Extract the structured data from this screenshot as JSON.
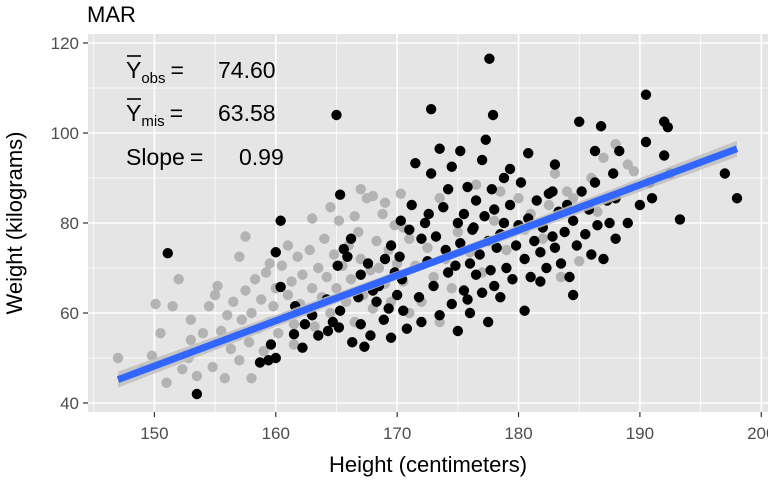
{
  "chart_data": {
    "type": "scatter",
    "title": "MAR",
    "xlabel": "Height (centimeters)",
    "ylabel": "Weight (kilograms)",
    "xlim": [
      145,
      200
    ],
    "ylim": [
      40,
      120
    ],
    "x_ticks": [
      150,
      160,
      170,
      180,
      190,
      200
    ],
    "y_ticks": [
      40,
      60,
      80,
      100,
      120
    ],
    "x_tick_labels": [
      "150",
      "160",
      "170",
      "180",
      "190",
      "200"
    ],
    "y_tick_labels": [
      "40",
      "60",
      "80",
      "100",
      "120"
    ],
    "grid": true,
    "legend": "none",
    "annotations": {
      "yobs": {
        "symbol": "Y",
        "sub": "obs",
        "eq": "=",
        "value": "74.60"
      },
      "ymis": {
        "symbol": "Y",
        "sub": "mis",
        "eq": "=",
        "value": "63.58"
      },
      "slope": {
        "label": "Slope",
        "eq": "=",
        "value": "0.99"
      }
    },
    "colors": {
      "panel": "#e5e5e5",
      "grid": "#ffffff",
      "observed": "#000000",
      "missing": "#b3b3b3",
      "fit": "#3366ff",
      "ribbon": "#bfbfbf"
    },
    "fit": {
      "x_start": 147,
      "x_end": 198,
      "y_start": 45.2,
      "y_end": 96.5
    },
    "series": [
      {
        "name": "observed",
        "points": [
          [
            151.1,
            73.3
          ],
          [
            153.5,
            42.0
          ],
          [
            158.7,
            49.0
          ],
          [
            159.4,
            49.5
          ],
          [
            159.6,
            53.0
          ],
          [
            160.0,
            50.0
          ],
          [
            160.4,
            80.5
          ],
          [
            160.0,
            73.5
          ],
          [
            160.4,
            65.8
          ],
          [
            161.5,
            55.3
          ],
          [
            161.6,
            61.5
          ],
          [
            162.2,
            52.3
          ],
          [
            162.4,
            57.5
          ],
          [
            163.0,
            59.5
          ],
          [
            163.5,
            55.0
          ],
          [
            164.2,
            63.0
          ],
          [
            164.3,
            56.0
          ],
          [
            164.7,
            58.0
          ],
          [
            165.2,
            56.8
          ],
          [
            165.3,
            60.5
          ],
          [
            165.1,
            70.5
          ],
          [
            165.3,
            86.3
          ],
          [
            165.0,
            104.0
          ],
          [
            165.6,
            74.2
          ],
          [
            165.9,
            72.5
          ],
          [
            166.2,
            76.5
          ],
          [
            166.3,
            53.5
          ],
          [
            166.8,
            63.5
          ],
          [
            167.0,
            68.5
          ],
          [
            167.0,
            57.5
          ],
          [
            167.3,
            52.5
          ],
          [
            167.6,
            71.0
          ],
          [
            167.8,
            55.0
          ],
          [
            168.0,
            65.0
          ],
          [
            168.3,
            62.5
          ],
          [
            168.5,
            66.0
          ],
          [
            168.9,
            58.5
          ],
          [
            169.0,
            72.0
          ],
          [
            169.3,
            61.0
          ],
          [
            169.5,
            54.5
          ],
          [
            169.8,
            69.0
          ],
          [
            170.0,
            64.0
          ],
          [
            170.2,
            72.5
          ],
          [
            170.4,
            67.5
          ],
          [
            170.8,
            56.5
          ],
          [
            171.0,
            78.5
          ],
          [
            171.2,
            84.0
          ],
          [
            171.5,
            93.3
          ],
          [
            171.8,
            63.5
          ],
          [
            172.0,
            58.0
          ],
          [
            172.3,
            80.0
          ],
          [
            172.5,
            71.5
          ],
          [
            172.8,
            91.0
          ],
          [
            172.8,
            105.3
          ],
          [
            173.0,
            66.0
          ],
          [
            173.2,
            77.0
          ],
          [
            173.5,
            96.5
          ],
          [
            173.5,
            59.5
          ],
          [
            173.8,
            83.5
          ],
          [
            174.0,
            74.0
          ],
          [
            174.2,
            87.5
          ],
          [
            174.5,
            62.0
          ],
          [
            174.5,
            92.5
          ],
          [
            174.8,
            70.5
          ],
          [
            175.0,
            80.0
          ],
          [
            175.0,
            56.0
          ],
          [
            175.2,
            75.5
          ],
          [
            175.5,
            82.0
          ],
          [
            175.5,
            65.0
          ],
          [
            175.8,
            88.0
          ],
          [
            176.0,
            71.0
          ],
          [
            176.0,
            60.0
          ],
          [
            176.2,
            78.5
          ],
          [
            176.5,
            85.0
          ],
          [
            176.5,
            68.5
          ],
          [
            176.8,
            73.0
          ],
          [
            177.0,
            94.0
          ],
          [
            177.0,
            64.5
          ],
          [
            177.2,
            81.5
          ],
          [
            177.5,
            76.0
          ],
          [
            177.5,
            58.0
          ],
          [
            177.6,
            116.5
          ],
          [
            177.7,
            69.5
          ],
          [
            177.8,
            87.5
          ],
          [
            178.0,
            83.0
          ],
          [
            178.0,
            66.0
          ],
          [
            178.2,
            74.5
          ],
          [
            178.5,
            77.5
          ],
          [
            178.5,
            63.5
          ],
          [
            178.8,
            80.0
          ],
          [
            179.0,
            70.0
          ],
          [
            179.3,
            84.0
          ],
          [
            179.5,
            67.5
          ],
          [
            179.8,
            75.0
          ],
          [
            180.0,
            79.5
          ],
          [
            180.2,
            89.0
          ],
          [
            180.5,
            60.5
          ],
          [
            180.5,
            72.0
          ],
          [
            180.8,
            81.0
          ],
          [
            181.0,
            68.0
          ],
          [
            181.3,
            76.0
          ],
          [
            181.5,
            85.0
          ],
          [
            181.8,
            73.5
          ],
          [
            182.0,
            79.0
          ],
          [
            182.3,
            70.0
          ],
          [
            182.5,
            86.5
          ],
          [
            182.8,
            77.0
          ],
          [
            183.0,
            74.5
          ],
          [
            183.3,
            82.5
          ],
          [
            183.5,
            71.0
          ],
          [
            183.8,
            78.0
          ],
          [
            184.0,
            84.0
          ],
          [
            184.2,
            68.0
          ],
          [
            184.5,
            80.5
          ],
          [
            184.8,
            75.0
          ],
          [
            185.0,
            102.5
          ],
          [
            185.2,
            87.0
          ],
          [
            185.5,
            77.5
          ],
          [
            185.8,
            83.0
          ],
          [
            186.0,
            73.0
          ],
          [
            186.3,
            89.0
          ],
          [
            186.5,
            79.5
          ],
          [
            186.8,
            101.5
          ],
          [
            187.0,
            72.0
          ],
          [
            187.3,
            85.0
          ],
          [
            187.5,
            80.0
          ],
          [
            187.8,
            91.0
          ],
          [
            188.0,
            76.5
          ],
          [
            188.0,
            85.5
          ],
          [
            189.0,
            80.0
          ],
          [
            190.0,
            84.0
          ],
          [
            190.5,
            108.5
          ],
          [
            190.5,
            98.0
          ],
          [
            190.8,
            89.0
          ],
          [
            191.0,
            85.5
          ],
          [
            192.0,
            102.5
          ],
          [
            192.3,
            101.3
          ],
          [
            192.0,
            95.0
          ],
          [
            192.5,
            91.0
          ],
          [
            193.3,
            80.8
          ],
          [
            197.0,
            91.0
          ],
          [
            198.0,
            85.5
          ],
          [
            172.0,
            76.5
          ],
          [
            175.2,
            96.0
          ],
          [
            177.3,
            98.5
          ],
          [
            181.8,
            67.0
          ],
          [
            183.0,
            93.0
          ],
          [
            170.3,
            80.5
          ],
          [
            174.2,
            69.0
          ],
          [
            178.8,
            90.0
          ],
          [
            176.3,
            79.0
          ],
          [
            179.3,
            92.0
          ],
          [
            180.8,
            95.5
          ],
          [
            182.8,
            87.0
          ],
          [
            184.5,
            64.0
          ],
          [
            186.3,
            96.0
          ],
          [
            188.3,
            96.0
          ],
          [
            170.5,
            60.5
          ],
          [
            169.5,
            75.0
          ],
          [
            172.6,
            82.0
          ],
          [
            175.8,
            63.0
          ],
          [
            177.9,
            104.0
          ]
        ]
      },
      {
        "name": "missing",
        "points": [
          [
            147.0,
            50.0
          ],
          [
            149.0,
            47.5
          ],
          [
            149.8,
            50.5
          ],
          [
            150.1,
            62.0
          ],
          [
            150.5,
            55.5
          ],
          [
            151.0,
            44.5
          ],
          [
            151.5,
            61.5
          ],
          [
            152.0,
            67.5
          ],
          [
            152.3,
            47.5
          ],
          [
            152.8,
            50.0
          ],
          [
            153.0,
            54.0
          ],
          [
            153.5,
            46.0
          ],
          [
            154.0,
            55.5
          ],
          [
            154.5,
            61.5
          ],
          [
            154.8,
            48.0
          ],
          [
            155.0,
            53.0
          ],
          [
            155.2,
            66.0
          ],
          [
            155.5,
            56.0
          ],
          [
            155.8,
            45.5
          ],
          [
            156.0,
            59.5
          ],
          [
            156.3,
            52.0
          ],
          [
            156.5,
            62.5
          ],
          [
            156.8,
            55.0
          ],
          [
            157.0,
            49.5
          ],
          [
            157.2,
            58.5
          ],
          [
            157.5,
            65.0
          ],
          [
            157.5,
            77.0
          ],
          [
            157.8,
            53.5
          ],
          [
            158.0,
            60.0
          ],
          [
            158.3,
            67.5
          ],
          [
            158.5,
            56.5
          ],
          [
            158.8,
            63.0
          ],
          [
            159.0,
            51.5
          ],
          [
            159.2,
            69.0
          ],
          [
            159.5,
            58.0
          ],
          [
            159.8,
            61.5
          ],
          [
            160.0,
            65.5
          ],
          [
            160.2,
            55.5
          ],
          [
            160.5,
            70.5
          ],
          [
            160.8,
            59.0
          ],
          [
            161.0,
            64.0
          ],
          [
            161.3,
            67.0
          ],
          [
            161.5,
            57.5
          ],
          [
            161.8,
            72.5
          ],
          [
            162.0,
            62.0
          ],
          [
            162.2,
            68.5
          ],
          [
            162.5,
            60.5
          ],
          [
            162.8,
            74.0
          ],
          [
            163.0,
            65.5
          ],
          [
            163.2,
            57.0
          ],
          [
            163.5,
            70.0
          ],
          [
            163.8,
            63.5
          ],
          [
            164.0,
            76.5
          ],
          [
            164.2,
            68.0
          ],
          [
            164.5,
            60.0
          ],
          [
            164.8,
            73.0
          ],
          [
            165.0,
            65.5
          ],
          [
            165.2,
            80.5
          ],
          [
            165.5,
            70.5
          ],
          [
            165.8,
            62.5
          ],
          [
            166.0,
            75.0
          ],
          [
            166.2,
            67.5
          ],
          [
            166.5,
            58.0
          ],
          [
            166.8,
            78.0
          ],
          [
            167.0,
            72.0
          ],
          [
            167.2,
            64.0
          ],
          [
            167.5,
            85.5
          ],
          [
            167.8,
            69.5
          ],
          [
            168.0,
            61.0
          ],
          [
            168.3,
            76.0
          ],
          [
            168.5,
            70.0
          ],
          [
            168.8,
            82.0
          ],
          [
            169.0,
            66.5
          ],
          [
            169.3,
            74.0
          ],
          [
            169.5,
            62.5
          ],
          [
            169.8,
            79.5
          ],
          [
            170.0,
            71.0
          ],
          [
            170.3,
            86.5
          ],
          [
            170.5,
            67.0
          ],
          [
            171.0,
            76.5
          ],
          [
            171.5,
            70.5
          ],
          [
            172.0,
            62.5
          ],
          [
            172.5,
            74.5
          ],
          [
            173.0,
            68.0
          ],
          [
            173.5,
            85.5
          ],
          [
            174.0,
            72.0
          ],
          [
            174.5,
            65.5
          ],
          [
            175.0,
            78.0
          ],
          [
            176.0,
            73.5
          ],
          [
            177.0,
            69.0
          ],
          [
            178.0,
            80.5
          ],
          [
            179.0,
            74.0
          ],
          [
            180.5,
            78.5
          ],
          [
            181.0,
            82.0
          ],
          [
            182.0,
            76.5
          ],
          [
            182.5,
            84.0
          ],
          [
            183.0,
            91.0
          ],
          [
            184.0,
            87.0
          ],
          [
            184.5,
            85.5
          ],
          [
            185.0,
            71.5
          ],
          [
            186.0,
            90.0
          ],
          [
            186.5,
            82.5
          ],
          [
            187.0,
            94.5
          ],
          [
            188.0,
            97.5
          ],
          [
            189.0,
            93.0
          ],
          [
            189.5,
            91.5
          ],
          [
            180.0,
            85.5
          ],
          [
            183.5,
            68.0
          ],
          [
            157.0,
            72.5
          ],
          [
            159.5,
            71.0
          ],
          [
            161.0,
            75.0
          ],
          [
            163.0,
            81.0
          ],
          [
            164.5,
            83.5
          ],
          [
            166.5,
            81.5
          ],
          [
            168.0,
            86.0
          ],
          [
            170.5,
            79.0
          ],
          [
            155.0,
            64.0
          ],
          [
            153.0,
            58.5
          ],
          [
            158.0,
            45.5
          ],
          [
            161.5,
            53.0
          ],
          [
            167.0,
            87.5
          ],
          [
            169.0,
            84.5
          ],
          [
            171.0,
            60.0
          ],
          [
            173.5,
            58.0
          ],
          [
            176.5,
            88.5
          ],
          [
            178.5,
            87.0
          ]
        ]
      }
    ]
  }
}
